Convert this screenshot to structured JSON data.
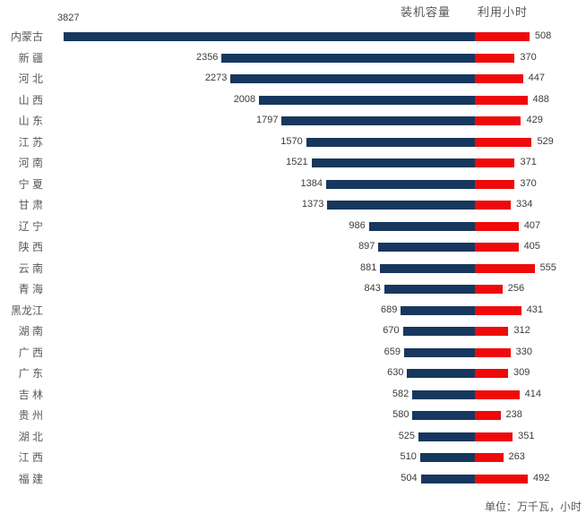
{
  "chart_data": {
    "type": "bar",
    "variant": "diverging-horizontal-tornado",
    "title": "",
    "legend": {
      "capacity": "装机容量",
      "hours": "利用小时"
    },
    "unit_note": "单位：万千瓦，小时",
    "categories": [
      "内蒙古",
      "新 疆",
      "河 北",
      "山 西",
      "山 东",
      "江 苏",
      "河 南",
      "宁 夏",
      "甘 肃",
      "辽 宁",
      "陕 西",
      "云 南",
      "青 海",
      "黑龙江",
      "湖 南",
      "广 西",
      "广 东",
      "吉 林",
      "贵 州",
      "湖 北",
      "江 西",
      "福 建"
    ],
    "series": [
      {
        "name": "装机容量",
        "direction": "left",
        "color": "#17375e",
        "values": [
          3827,
          2356,
          2273,
          2008,
          1797,
          1570,
          1521,
          1384,
          1373,
          986,
          897,
          881,
          843,
          689,
          670,
          659,
          630,
          582,
          580,
          525,
          510,
          504
        ]
      },
      {
        "name": "利用小时",
        "direction": "right",
        "color": "#ee0a0a",
        "values": [
          508,
          370,
          447,
          488,
          429,
          529,
          371,
          370,
          334,
          407,
          405,
          555,
          256,
          431,
          312,
          330,
          309,
          414,
          238,
          351,
          263,
          492
        ]
      }
    ],
    "layout": {
      "legend_position": "top-right-of-plot",
      "axis": "none",
      "grid": false,
      "value_labels": "outside-ends"
    }
  },
  "colors": {
    "capacity_bar": "#17375e",
    "hours_bar": "#ee0a0a",
    "category_text": "#595959",
    "value_text": "#3b3b3b",
    "background": "#ffffff"
  }
}
